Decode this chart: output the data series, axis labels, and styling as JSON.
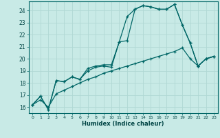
{
  "xlabel": "Humidex (Indice chaleur)",
  "background_color": "#c8eae6",
  "grid_color": "#b0d8d4",
  "line_color": "#006666",
  "xlim": [
    -0.5,
    23.5
  ],
  "ylim": [
    15.5,
    24.75
  ],
  "yticks": [
    16,
    17,
    18,
    19,
    20,
    21,
    22,
    23,
    24
  ],
  "xticks": [
    0,
    1,
    2,
    3,
    4,
    5,
    6,
    7,
    8,
    9,
    10,
    11,
    12,
    13,
    14,
    15,
    16,
    17,
    18,
    19,
    20,
    21,
    22,
    23
  ],
  "s1_x": [
    0,
    1,
    2,
    3,
    4,
    5,
    6,
    7,
    8,
    9,
    10,
    11,
    12,
    13,
    14,
    15,
    16,
    17,
    18,
    19,
    20,
    21,
    22,
    23
  ],
  "s1_y": [
    16.2,
    16.9,
    15.8,
    18.2,
    18.1,
    18.5,
    18.3,
    19.0,
    19.3,
    19.4,
    19.3,
    21.4,
    23.5,
    24.1,
    24.4,
    24.3,
    24.1,
    24.1,
    24.5,
    22.8,
    21.3,
    19.4,
    20.0,
    20.2
  ],
  "s2_x": [
    0,
    1,
    2,
    3,
    4,
    5,
    6,
    7,
    8,
    9,
    10,
    11,
    12,
    13,
    14,
    15,
    16,
    17,
    18,
    19,
    20,
    21,
    22,
    23
  ],
  "s2_y": [
    16.2,
    16.9,
    15.8,
    18.2,
    18.1,
    18.5,
    18.3,
    19.2,
    19.4,
    19.5,
    19.5,
    21.4,
    21.5,
    24.1,
    24.4,
    24.3,
    24.1,
    24.1,
    24.5,
    22.8,
    21.3,
    19.4,
    20.0,
    20.2
  ],
  "s3_x": [
    0,
    1,
    2,
    3,
    4,
    5,
    6,
    7,
    8,
    9,
    10,
    11,
    12,
    13,
    14,
    15,
    16,
    17,
    18,
    19,
    20,
    21,
    22,
    23
  ],
  "s3_y": [
    16.2,
    16.6,
    16.0,
    17.1,
    17.4,
    17.7,
    18.0,
    18.3,
    18.5,
    18.8,
    19.0,
    19.2,
    19.4,
    19.6,
    19.8,
    20.0,
    20.2,
    20.4,
    20.6,
    20.9,
    20.0,
    19.4,
    20.0,
    20.2
  ]
}
